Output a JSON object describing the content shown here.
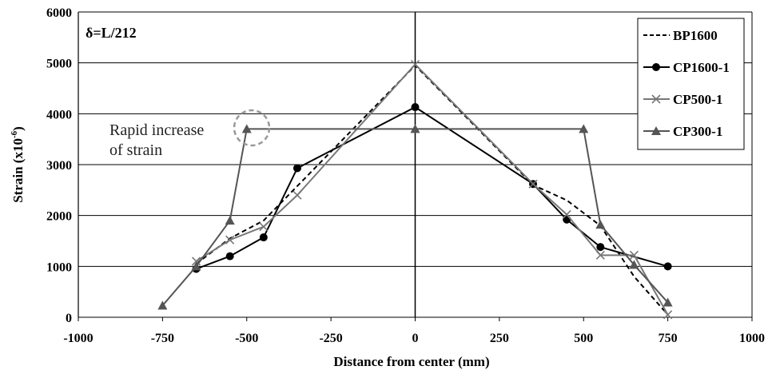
{
  "chart_data": {
    "type": "line",
    "title": "",
    "xlabel": "Distance from center (mm)",
    "ylabel": "Strain (x10",
    "ylabel_sup": "-6",
    "ylabel_close": ")",
    "xlim": [
      -1000,
      1000
    ],
    "ylim": [
      0,
      6000
    ],
    "x_ticks": [
      -1000,
      -750,
      -500,
      -250,
      0,
      250,
      500,
      750,
      1000
    ],
    "y_ticks": [
      0,
      1000,
      2000,
      3000,
      4000,
      5000,
      6000
    ],
    "grid": "horizontal",
    "legend_position": "top-right",
    "series": [
      {
        "name": "BP1600",
        "color": "#000000",
        "line": "dashed",
        "marker": "none",
        "points": [
          [
            -650,
            1050
          ],
          [
            -550,
            1550
          ],
          [
            -450,
            1900
          ],
          [
            0,
            4950
          ],
          [
            350,
            2600
          ],
          [
            450,
            2300
          ],
          [
            550,
            1800
          ],
          [
            650,
            800
          ],
          [
            750,
            50
          ]
        ]
      },
      {
        "name": "CP1600-1",
        "color": "#000000",
        "line": "solid",
        "marker": "circle",
        "points": [
          [
            -650,
            950
          ],
          [
            -550,
            1200
          ],
          [
            -450,
            1570
          ],
          [
            -350,
            2930
          ],
          [
            0,
            4130
          ],
          [
            350,
            2620
          ],
          [
            450,
            1920
          ],
          [
            550,
            1380
          ],
          [
            750,
            1000
          ]
        ]
      },
      {
        "name": "CP500-1",
        "color": "#777777",
        "line": "solid",
        "marker": "x",
        "points": [
          [
            -650,
            1100
          ],
          [
            -550,
            1520
          ],
          [
            -450,
            1780
          ],
          [
            -350,
            2400
          ],
          [
            0,
            4970
          ],
          [
            350,
            2620
          ],
          [
            450,
            2020
          ],
          [
            550,
            1220
          ],
          [
            650,
            1220
          ],
          [
            750,
            50
          ]
        ]
      },
      {
        "name": "CP300-1",
        "color": "#555555",
        "line": "solid",
        "marker": "triangle",
        "points": [
          [
            -750,
            230
          ],
          [
            -650,
            1000
          ],
          [
            -550,
            1900
          ],
          [
            -500,
            3700
          ],
          [
            0,
            3700
          ],
          [
            500,
            3700
          ],
          [
            550,
            1820
          ],
          [
            650,
            1030
          ],
          [
            750,
            290
          ]
        ]
      }
    ],
    "annotations": {
      "delta_label": "δ=L/212",
      "rapid_line1": "Rapid increase",
      "rapid_line2": "of strain"
    }
  }
}
